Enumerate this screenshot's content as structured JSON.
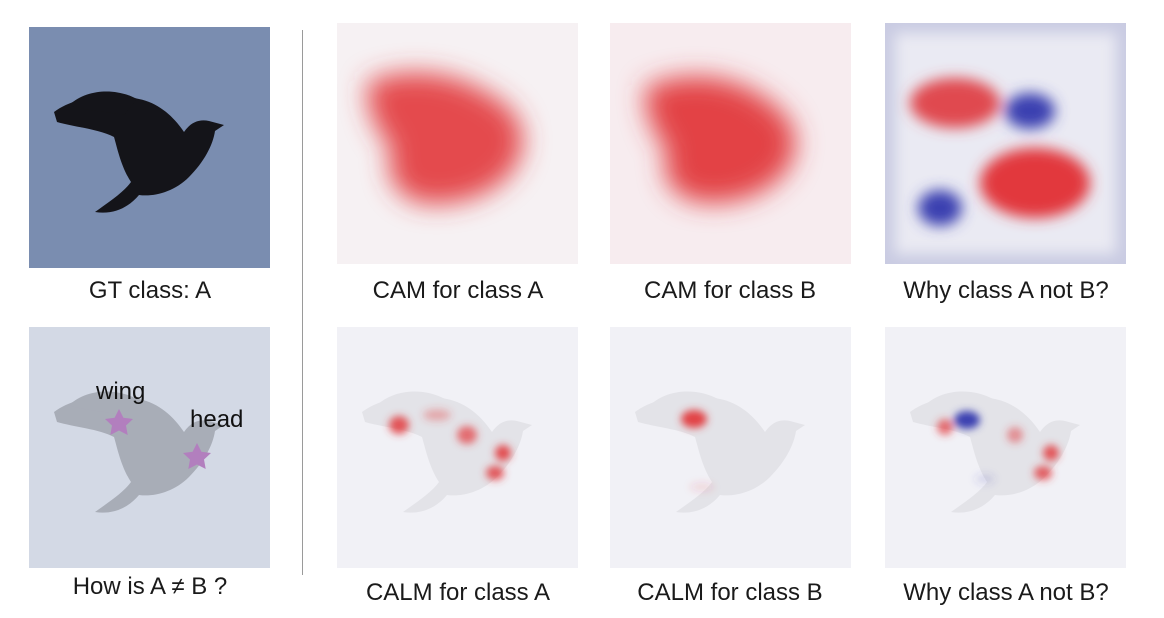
{
  "captions": {
    "gt": "GT class: A",
    "cam_a": "CAM for class A",
    "cam_b": "CAM for class B",
    "cam_why": "Why class A not B?",
    "how": "How is A ≠ B ?",
    "calm_a": "CALM for class A",
    "calm_b": "CALM for class B",
    "calm_why": "Why class A not B?"
  },
  "annotations": {
    "wing": "wing",
    "head": "head"
  },
  "colors": {
    "sky": "#7a8db0",
    "faded_bg": "#d3d9e5",
    "bird": "#141419",
    "star": "#b27fbe",
    "positive": "#e0373a",
    "negative": "#3b3fb0",
    "map_bg": "#f1f1f6"
  }
}
